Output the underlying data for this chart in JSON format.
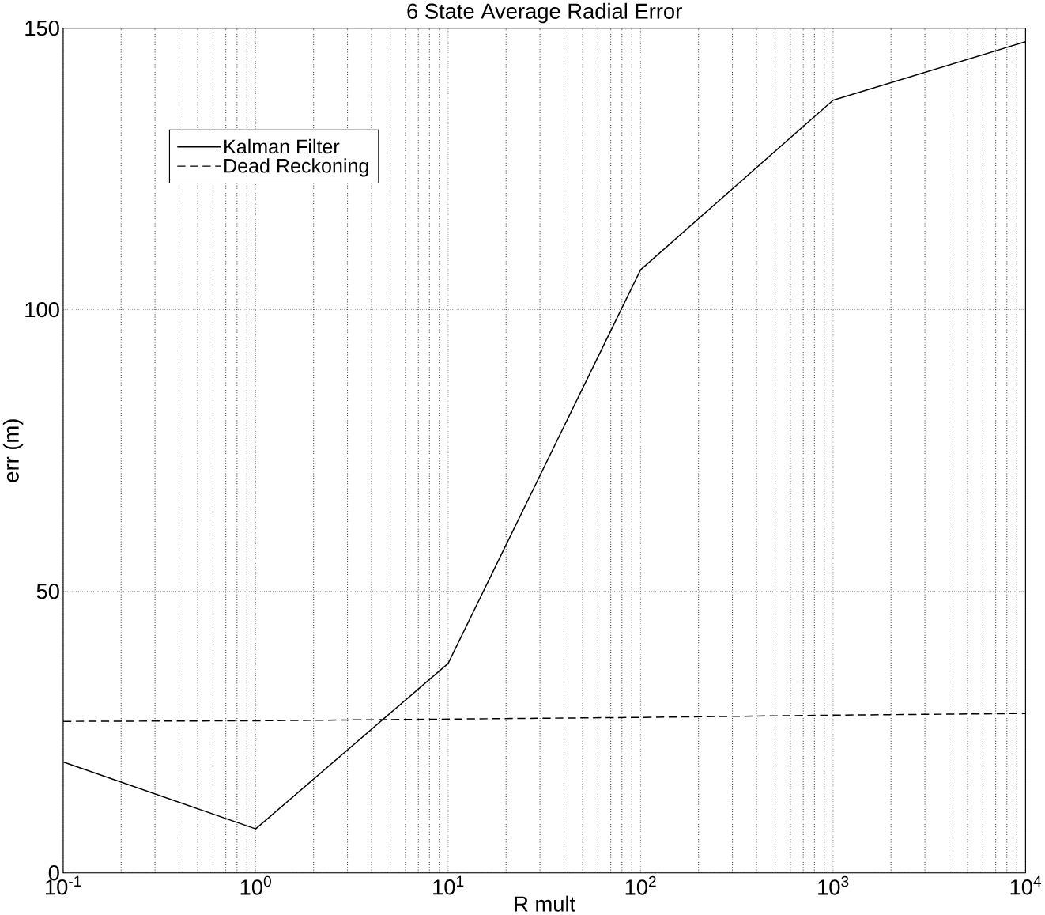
{
  "chart_data": {
    "type": "line",
    "title": "6 State Average Radial Error",
    "xlabel": "R mult",
    "ylabel": "err (m)",
    "log": "x",
    "x": [
      0.1,
      1,
      10,
      100,
      1000,
      10000
    ],
    "series": [
      {
        "name": "Kalman Filter",
        "color": "#000000",
        "line_style": "solid",
        "values": [
          19.7,
          7.8,
          37.2,
          107.1,
          137.2,
          147.6
        ]
      },
      {
        "name": "Dead Reckoning",
        "color": "#000000",
        "line_style": "dashed",
        "values": [
          26.9,
          27,
          27.3,
          27.6,
          28,
          28.3
        ]
      }
    ],
    "xlim": [
      0.1,
      10000
    ],
    "ylim": [
      0,
      150
    ],
    "xticks": [
      {
        "value": 0.1,
        "label": "10$^{-1}$"
      },
      {
        "value": 1,
        "label": "10$^{0}$"
      },
      {
        "value": 10,
        "label": "10$^{1}$"
      },
      {
        "value": 100,
        "label": "10$^{2}$"
      },
      {
        "value": 1000,
        "label": "10$^{3}$"
      },
      {
        "value": 10000,
        "label": "10$^{4}$"
      }
    ],
    "yticks": [
      0,
      50,
      100,
      150
    ],
    "grid": true,
    "legend": "top left"
  }
}
